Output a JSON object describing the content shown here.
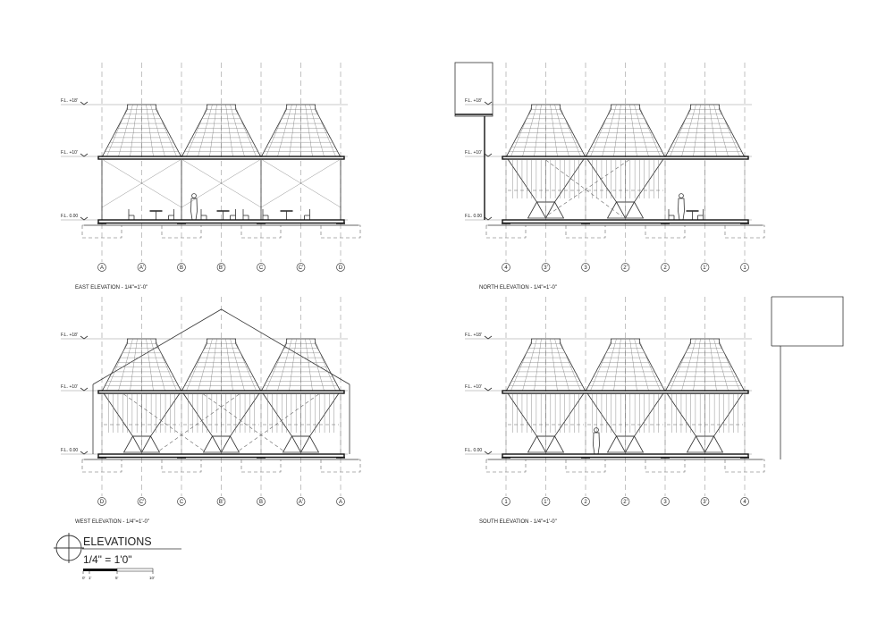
{
  "elevations": [
    {
      "key": "east",
      "title": "EAST ELEVATION - 1/4\"=1'-0\"",
      "grid": [
        "A",
        "A'",
        "B",
        "B'",
        "C",
        "C'",
        "D"
      ],
      "levels": [
        "F.L. +18'",
        "F.L. +10'",
        "F.L. 0.00"
      ],
      "infill": "open"
    },
    {
      "key": "north",
      "title": "NORTH ELEVATION - 1/4\"=1'-0\"",
      "grid": [
        "4",
        "3'",
        "3",
        "2'",
        "2",
        "1'",
        "1"
      ],
      "levels": [
        "F.L. +18'",
        "F.L. +10'",
        "F.L. 0.00"
      ],
      "infill": "two-closed"
    },
    {
      "key": "west",
      "title": "WEST ELEVATION - 1/4\"=1'-0\"",
      "grid": [
        "D",
        "C'",
        "C",
        "B'",
        "B",
        "A'",
        "A"
      ],
      "levels": [
        "F.L. +18'",
        "F.L. +10'",
        "F.L. 0.00"
      ],
      "infill": "closed"
    },
    {
      "key": "south",
      "title": "SOUTH ELEVATION - 1/4\"=1'-0\"",
      "grid": [
        "1",
        "1'",
        "2",
        "2'",
        "3",
        "3'",
        "4"
      ],
      "levels": [
        "F.L. +18'",
        "F.L. +10'",
        "F.L. 0.00"
      ],
      "infill": "cones"
    }
  ],
  "legend": {
    "title": "ELEVATIONS",
    "scale": "1/4\" = 1'0\"",
    "ticks": [
      "0'",
      "1'",
      "5'",
      "10'"
    ]
  }
}
